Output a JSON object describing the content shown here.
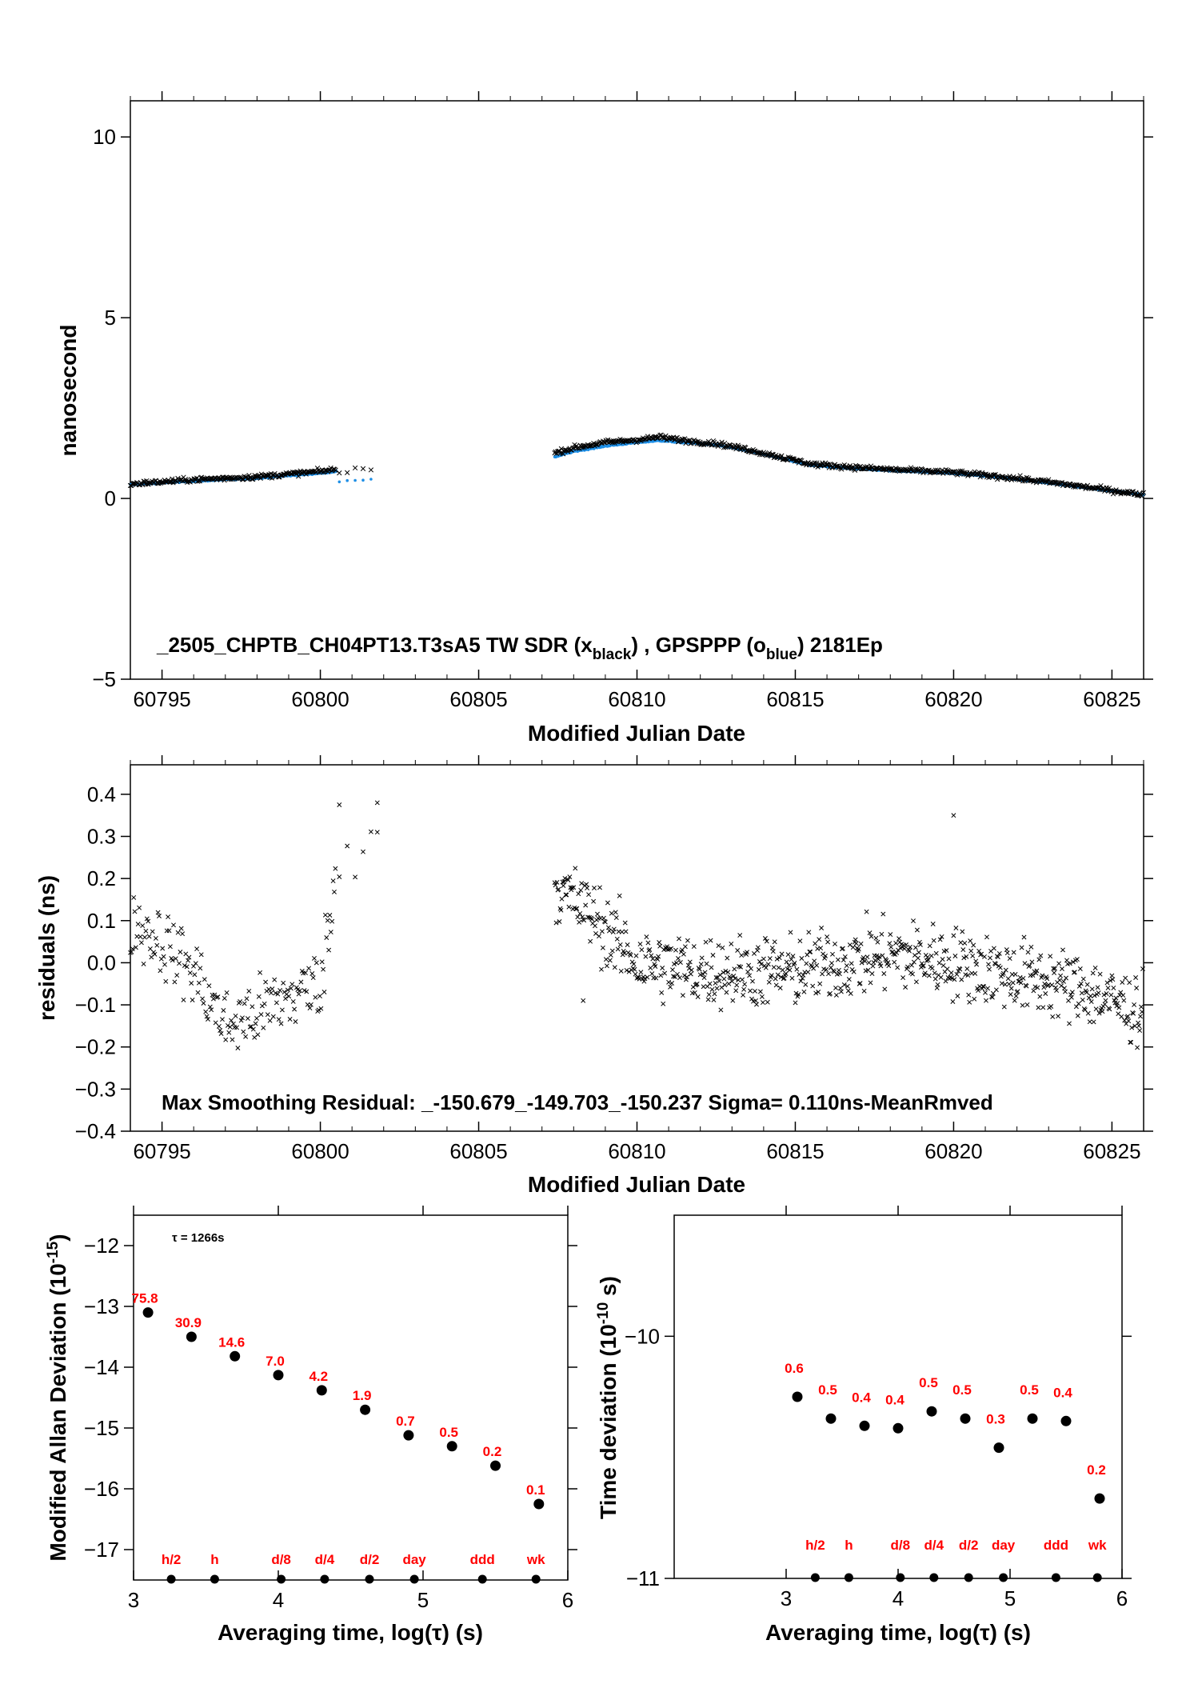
{
  "chart_data": [
    {
      "type": "scatter",
      "title": "_2505_CHPTB_CH04PT13.T3sA5     TW SDR (x",
      "title_sub1": "black",
      "title_mid": ") ,  GPSPPP (o",
      "title_sub2": "blue",
      "title_end": ")  2181Ep",
      "xlabel": "Modified Julian Date",
      "ylabel": "nanosecond",
      "xlim": [
        60794,
        60826
      ],
      "ylim": [
        -5,
        11
      ],
      "xticks": [
        60795,
        60800,
        60805,
        60810,
        60815,
        60820,
        60825
      ],
      "yticks": [
        -5,
        0,
        5,
        10
      ],
      "ytick_labels": [
        "−5",
        "0",
        "5",
        "10"
      ],
      "colors": {
        "tw_sdr": "#000000",
        "gpsppp": "#1e8fe6"
      },
      "series": [
        {
          "name": "TW SDR",
          "marker": "x",
          "segments": [
            {
              "x": [
                60794.0,
                60796.0,
                60798.0,
                60800.0,
                60800.5
              ],
              "y": [
                0.4,
                0.52,
                0.6,
                0.75,
                0.8
              ]
            },
            {
              "x": [
                60800.6,
                60801.8
              ],
              "y": [
                0.75,
                0.88
              ]
            },
            {
              "x": [
                60807.4,
                60808.0,
                60809.0,
                60810.0,
                60810.7,
                60811.5,
                60812.5,
                60813.5,
                60814.5,
                60815.5,
                60817.0,
                60818.5,
                60820.0,
                60821.5,
                60823.0,
                60824.5,
                60826.0
              ],
              "y": [
                1.25,
                1.4,
                1.55,
                1.62,
                1.7,
                1.6,
                1.52,
                1.35,
                1.15,
                0.95,
                0.85,
                0.78,
                0.72,
                0.6,
                0.45,
                0.28,
                0.1
              ]
            }
          ]
        },
        {
          "name": "GPSPPP",
          "marker": "o",
          "segments": [
            {
              "x": [
                60794.0,
                60796.0,
                60798.0,
                60800.0,
                60800.5
              ],
              "y": [
                0.38,
                0.48,
                0.56,
                0.7,
                0.75
              ]
            },
            {
              "x": [
                60800.6,
                60801.7
              ],
              "y": [
                0.45,
                0.55
              ]
            },
            {
              "x": [
                60807.4,
                60808.0,
                60809.0,
                60810.0,
                60810.7,
                60811.5,
                60812.5,
                60813.5,
                60814.5,
                60815.5,
                60817.0,
                60818.5,
                60820.0,
                60821.5,
                60823.0,
                60824.5,
                60826.0
              ],
              "y": [
                1.15,
                1.3,
                1.45,
                1.55,
                1.6,
                1.55,
                1.48,
                1.32,
                1.12,
                0.92,
                0.82,
                0.75,
                0.7,
                0.58,
                0.43,
                0.26,
                0.1
              ]
            }
          ]
        }
      ]
    },
    {
      "type": "scatter",
      "xlabel": "Modified Julian Date",
      "ylabel": "residuals (ns)",
      "xlim": [
        60794,
        60826
      ],
      "ylim": [
        -0.4,
        0.47
      ],
      "xticks": [
        60795,
        60800,
        60805,
        60810,
        60815,
        60820,
        60825
      ],
      "yticks": [
        -0.4,
        -0.3,
        -0.2,
        -0.1,
        0.0,
        0.1,
        0.2,
        0.3,
        0.4
      ],
      "ytick_labels": [
        "−0.4",
        "−0.3",
        "−0.2",
        "−0.1",
        "0.0",
        "0.1",
        "0.2",
        "0.3",
        "0.4"
      ],
      "annotation": "Max Smoothing Residual: _-150.679_-149.703_-150.237  Sigma= 0.110ns-MeanRmved",
      "series": [
        {
          "name": "residuals",
          "marker": "x",
          "trend_x": [
            60794.0,
            60795.0,
            60796.0,
            60797.0,
            60798.0,
            60799.0,
            60800.0,
            60800.6,
            60801.8,
            60807.4,
            60808.5,
            60810.0,
            60812.0,
            60815.0,
            60818.0,
            60820.0,
            60822.0,
            60824.0,
            60826.0
          ],
          "trend_y": [
            0.1,
            0.05,
            -0.02,
            -0.15,
            -0.12,
            -0.08,
            -0.05,
            0.25,
            0.33,
            0.18,
            0.12,
            0.0,
            -0.02,
            -0.02,
            0.02,
            0.0,
            -0.03,
            -0.06,
            -0.12
          ],
          "spread": 0.07,
          "highlight_points": [
            {
              "x": 60800.6,
              "y": 0.375
            },
            {
              "x": 60801.8,
              "y": 0.38
            },
            {
              "x": 60820.0,
              "y": 0.35
            },
            {
              "x": 60801.8,
              "y": 0.31
            },
            {
              "x": 60808.3,
              "y": -0.09
            }
          ]
        }
      ]
    },
    {
      "type": "scatter",
      "xlabel": "Averaging time, log(τ) (s)",
      "ylabel": "Modified Allan Deviation (10",
      "ylabel_sup": "-15",
      "ylabel_end": ")",
      "note": "τ = 1266s",
      "xlim": [
        3,
        6
      ],
      "ylim": [
        -17.5,
        -11.5
      ],
      "xticks": [
        3,
        4,
        5,
        6
      ],
      "yticks": [
        -17,
        -16,
        -15,
        -14,
        -13,
        -12
      ],
      "ytick_labels": [
        "−17",
        "−16",
        "−15",
        "−14",
        "−13",
        "−12"
      ],
      "series": [
        {
          "name": "mdev",
          "x": [
            3.1,
            3.4,
            3.7,
            4.0,
            4.3,
            4.6,
            4.9,
            5.2,
            5.5,
            5.8
          ],
          "y": [
            -13.1,
            -13.5,
            -13.82,
            -14.13,
            -14.38,
            -14.7,
            -15.12,
            -15.3,
            -15.62,
            -16.25
          ],
          "labels": [
            "75.8",
            "30.9",
            "14.6",
            "7.0",
            "4.2",
            "1.9",
            "0.7",
            "0.5",
            "0.2",
            "0.1"
          ]
        }
      ],
      "ref_marks": {
        "x": [
          3.26,
          3.56,
          4.02,
          4.32,
          4.63,
          4.94,
          5.41,
          5.78
        ],
        "labels": [
          "h/2",
          "h",
          "d/8",
          "d/4",
          "d/2",
          "day",
          "ddd",
          "wk"
        ]
      }
    },
    {
      "type": "scatter",
      "xlabel": "Averaging time, log(τ) (s)",
      "ylabel": "Time deviation (10",
      "ylabel_sup": "-10",
      "ylabel_end": " s)",
      "xlim": [
        2.0,
        6.0
      ],
      "ylim": [
        -11.0,
        -9.5
      ],
      "xticks": [
        3,
        4,
        5,
        6
      ],
      "yticks": [
        -11,
        -10
      ],
      "ytick_labels": [
        "−11",
        "−10"
      ],
      "series": [
        {
          "name": "tdev",
          "x": [
            3.1,
            3.4,
            3.7,
            4.0,
            4.3,
            4.6,
            4.9,
            5.2,
            5.5,
            5.8
          ],
          "y": [
            -10.25,
            -10.34,
            -10.37,
            -10.38,
            -10.31,
            -10.34,
            -10.46,
            -10.34,
            -10.35,
            -10.67
          ],
          "labels": [
            "0.6",
            "0.5",
            "0.4",
            "0.4",
            "0.5",
            "0.5",
            "0.3",
            "0.5",
            "0.4",
            "0.2"
          ]
        }
      ],
      "ref_marks": {
        "x": [
          3.26,
          3.56,
          4.02,
          4.32,
          4.63,
          4.94,
          5.41,
          5.78
        ],
        "labels": [
          "h/2",
          "h",
          "d/8",
          "d/4",
          "d/2",
          "day",
          "ddd",
          "wk"
        ]
      }
    }
  ]
}
